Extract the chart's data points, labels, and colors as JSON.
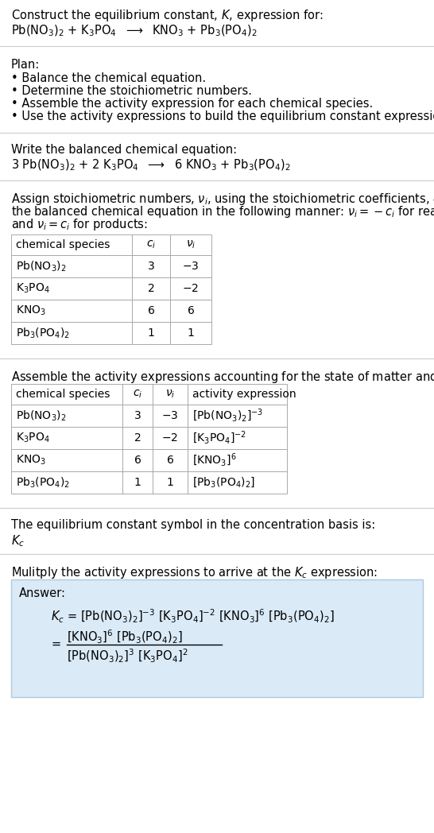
{
  "bg_color": "#ffffff",
  "text_color": "#000000",
  "light_blue_bg": "#daeaf7",
  "table_border_color": "#aaaaaa",
  "separator_color": "#cccccc",
  "title_text": "Construct the equilibrium constant, $K$, expression for:",
  "reaction_unbalanced": "Pb(NO$_3$)$_2$ + K$_3$PO$_4$  $\\longrightarrow$  KNO$_3$ + Pb$_3$(PO$_4$)$_2$",
  "plan_title": "Plan:",
  "plan_bullets": [
    "Balance the chemical equation.",
    "Determine the stoichiometric numbers.",
    "Assemble the activity expression for each chemical species.",
    "Use the activity expressions to build the equilibrium constant expression."
  ],
  "balanced_label": "Write the balanced chemical equation:",
  "reaction_balanced": "3 Pb(NO$_3$)$_2$ + 2 K$_3$PO$_4$  $\\longrightarrow$  6 KNO$_3$ + Pb$_3$(PO$_4$)$_2$",
  "stoich_intro_lines": [
    "Assign stoichiometric numbers, $\\nu_i$, using the stoichiometric coefficients, $c_i$, from",
    "the balanced chemical equation in the following manner: $\\nu_i = -c_i$ for reactants",
    "and $\\nu_i = c_i$ for products:"
  ],
  "table1_headers": [
    "chemical species",
    "$c_i$",
    "$\\nu_i$"
  ],
  "table1_rows": [
    [
      "Pb(NO$_3$)$_2$",
      "3",
      "$-3$"
    ],
    [
      "K$_3$PO$_4$",
      "2",
      "$-2$"
    ],
    [
      "KNO$_3$",
      "6",
      "6"
    ],
    [
      "Pb$_3$(PO$_4$)$_2$",
      "1",
      "1"
    ]
  ],
  "activity_intro": "Assemble the activity expressions accounting for the state of matter and $\\nu_i$:",
  "table2_headers": [
    "chemical species",
    "$c_i$",
    "$\\nu_i$",
    "activity expression"
  ],
  "table2_rows": [
    [
      "Pb(NO$_3$)$_2$",
      "3",
      "$-3$",
      "[Pb(NO$_3$)$_2$]$^{-3}$"
    ],
    [
      "K$_3$PO$_4$",
      "2",
      "$-2$",
      "[K$_3$PO$_4$]$^{-2}$"
    ],
    [
      "KNO$_3$",
      "6",
      "6",
      "[KNO$_3$]$^6$"
    ],
    [
      "Pb$_3$(PO$_4$)$_2$",
      "1",
      "1",
      "[Pb$_3$(PO$_4$)$_2$]"
    ]
  ],
  "kc_label": "The equilibrium constant symbol in the concentration basis is:",
  "kc_symbol": "$K_c$",
  "multiply_label": "Mulitply the activity expressions to arrive at the $K_c$ expression:",
  "answer_label": "Answer:",
  "answer_line1": "$K_c$ = [Pb(NO$_3$)$_2$]$^{-3}$ [K$_3$PO$_4$]$^{-2}$ [KNO$_3$]$^6$ [Pb$_3$(PO$_4$)$_2$]",
  "answer_eq_num": "[KNO$_3$]$^6$ [Pb$_3$(PO$_4$)$_2$]",
  "answer_eq_den": "[Pb(NO$_3$)$_2$]$^3$ [K$_3$PO$_4$]$^2$"
}
